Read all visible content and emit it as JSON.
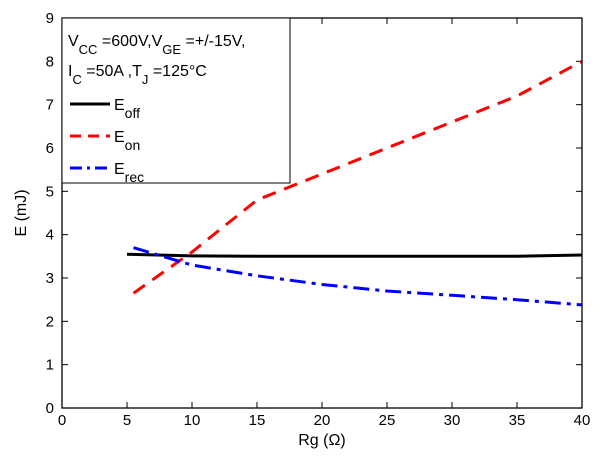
{
  "chart_data": {
    "type": "line",
    "xlabel": "Rg (Ω)",
    "ylabel": "E (mJ)",
    "xlim": [
      0,
      40
    ],
    "ylim": [
      0,
      9
    ],
    "xticks": [
      0,
      5,
      10,
      15,
      20,
      25,
      30,
      35,
      40
    ],
    "yticks": [
      0,
      1,
      2,
      3,
      4,
      5,
      6,
      7,
      8,
      9
    ],
    "grid": false,
    "legend_position": "top-left",
    "conditions": [
      {
        "parts": [
          {
            "t": "V"
          },
          {
            "t": "CC",
            "sub": true
          },
          {
            "t": " =600V,V"
          },
          {
            "t": "GE",
            "sub": true
          },
          {
            "t": " =+/-15V,"
          }
        ]
      },
      {
        "parts": [
          {
            "t": "I"
          },
          {
            "t": "C",
            "sub": true
          },
          {
            "t": " =50A ,T"
          },
          {
            "t": "J",
            "sub": true
          },
          {
            "t": " =125°C"
          }
        ]
      }
    ],
    "series": [
      {
        "name": "E_off",
        "label_main": "E",
        "label_sub": "off",
        "color": "#000000",
        "style": "solid",
        "x": [
          5,
          10,
          15,
          20,
          25,
          30,
          35,
          40
        ],
        "y": [
          3.55,
          3.51,
          3.5,
          3.5,
          3.5,
          3.5,
          3.5,
          3.53
        ]
      },
      {
        "name": "E_on",
        "label_main": "E",
        "label_sub": "on",
        "color": "#ff0000",
        "style": "dash",
        "x": [
          5.5,
          10,
          15,
          20,
          25,
          30,
          35,
          40
        ],
        "y": [
          2.65,
          3.6,
          4.8,
          5.4,
          6.0,
          6.6,
          7.2,
          8.0
        ]
      },
      {
        "name": "E_rec",
        "label_main": "E",
        "label_sub": "rec",
        "color": "#0000ff",
        "style": "dashdot",
        "x": [
          5.5,
          10,
          15,
          20,
          25,
          30,
          35,
          40
        ],
        "y": [
          3.7,
          3.3,
          3.05,
          2.85,
          2.7,
          2.6,
          2.5,
          2.38
        ]
      }
    ]
  }
}
